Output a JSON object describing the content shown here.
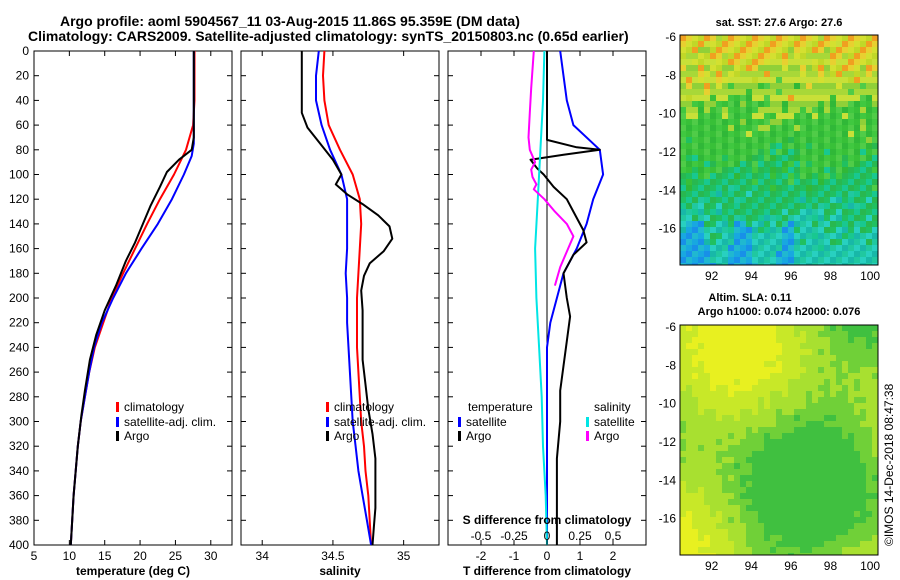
{
  "header": {
    "title_line1": "Argo profile: aoml 5904567_11 03-Aug-2015 11.86S 95.359E (DM data)",
    "title_line2": "Climatology: CARS2009. Satellite-adjusted climatology: synTS_20150803.nc (0.65d earlier)"
  },
  "credit": "©IMOS 14-Dec-2018 08:47:38",
  "colors": {
    "climatology": "#ff0000",
    "satellite": "#0000ff",
    "argo": "#000000",
    "sal_sat": "#00e5e5",
    "sal_clim": "#ff00ff"
  },
  "chart_data": [
    {
      "id": "temperature",
      "type": "line",
      "xlabel": "temperature (deg C)",
      "ylabel": "",
      "xlim": [
        5,
        33
      ],
      "ylim": [
        400,
        0
      ],
      "xticks": [
        5,
        10,
        15,
        20,
        25,
        30
      ],
      "yticks": [
        0,
        20,
        40,
        60,
        80,
        100,
        120,
        140,
        160,
        180,
        200,
        220,
        240,
        260,
        280,
        300,
        320,
        340,
        360,
        380,
        400
      ],
      "legend": {
        "placement": "bottom-right",
        "entries": [
          "climatology",
          "satellite-adj. clim.",
          "Argo"
        ]
      },
      "series": [
        {
          "name": "climatology",
          "color": "#ff0000",
          "points": [
            [
              27.7,
              0
            ],
            [
              27.7,
              40
            ],
            [
              27.5,
              60
            ],
            [
              26.5,
              80
            ],
            [
              24.8,
              100
            ],
            [
              22.8,
              120
            ],
            [
              21,
              140
            ],
            [
              19.3,
              160
            ],
            [
              17.6,
              180
            ],
            [
              16,
              200
            ],
            [
              14.8,
              220
            ],
            [
              13.6,
              240
            ],
            [
              12.8,
              260
            ],
            [
              12.2,
              280
            ],
            [
              11.6,
              300
            ],
            [
              11.2,
              320
            ],
            [
              10.9,
              340
            ],
            [
              10.6,
              360
            ],
            [
              10.4,
              380
            ],
            [
              10.2,
              400
            ]
          ]
        },
        {
          "name": "satellite-adj. clim.",
          "color": "#0000ff",
          "points": [
            [
              27.6,
              0
            ],
            [
              27.6,
              55
            ],
            [
              27.6,
              75
            ],
            [
              27.3,
              85
            ],
            [
              26.2,
              100
            ],
            [
              24.5,
              120
            ],
            [
              22.5,
              140
            ],
            [
              20.2,
              160
            ],
            [
              18,
              180
            ],
            [
              16.2,
              200
            ],
            [
              14.6,
              220
            ],
            [
              13.5,
              240
            ],
            [
              12.8,
              260
            ],
            [
              12.2,
              280
            ],
            [
              11.6,
              300
            ],
            [
              11.2,
              320
            ],
            [
              10.9,
              340
            ],
            [
              10.6,
              360
            ],
            [
              10.4,
              380
            ],
            [
              10.2,
              400
            ]
          ]
        },
        {
          "name": "Argo",
          "color": "#000000",
          "points": [
            [
              27.6,
              0
            ],
            [
              27.6,
              70
            ],
            [
              27.3,
              80
            ],
            [
              25.5,
              88
            ],
            [
              23.8,
              98
            ],
            [
              22.8,
              110
            ],
            [
              21.5,
              125
            ],
            [
              20.4,
              140
            ],
            [
              19.3,
              155
            ],
            [
              18,
              170
            ],
            [
              16.6,
              190
            ],
            [
              15,
              210
            ],
            [
              13.8,
              230
            ],
            [
              12.9,
              250
            ],
            [
              12.2,
              275
            ],
            [
              11.7,
              295
            ],
            [
              11.2,
              320
            ],
            [
              10.9,
              340
            ],
            [
              10.6,
              360
            ],
            [
              10.4,
              380
            ],
            [
              10.2,
              400
            ]
          ]
        }
      ]
    },
    {
      "id": "salinity",
      "type": "line",
      "xlabel": "salinity",
      "xlim": [
        33.85,
        35.25
      ],
      "ylim": [
        400,
        0
      ],
      "xticks": [
        34,
        34.5,
        35
      ],
      "legend": {
        "placement": "bottom-right",
        "entries": [
          "climatology",
          "satellite-adj. clim.",
          "Argo"
        ]
      },
      "series": [
        {
          "name": "climatology",
          "color": "#ff0000",
          "points": [
            [
              34.44,
              0
            ],
            [
              34.43,
              20
            ],
            [
              34.44,
              40
            ],
            [
              34.47,
              60
            ],
            [
              34.55,
              80
            ],
            [
              34.64,
              100
            ],
            [
              34.69,
              120
            ],
            [
              34.7,
              140
            ],
            [
              34.69,
              160
            ],
            [
              34.68,
              180
            ],
            [
              34.67,
              200
            ],
            [
              34.67,
              220
            ],
            [
              34.67,
              240
            ],
            [
              34.68,
              260
            ],
            [
              34.69,
              280
            ],
            [
              34.7,
              300
            ],
            [
              34.72,
              320
            ],
            [
              34.73,
              340
            ],
            [
              34.75,
              360
            ],
            [
              34.76,
              380
            ],
            [
              34.77,
              400
            ]
          ]
        },
        {
          "name": "satellite-adj. clim.",
          "color": "#0000ff",
          "points": [
            [
              34.4,
              0
            ],
            [
              34.38,
              20
            ],
            [
              34.38,
              40
            ],
            [
              34.42,
              60
            ],
            [
              34.48,
              80
            ],
            [
              34.56,
              100
            ],
            [
              34.6,
              120
            ],
            [
              34.6,
              140
            ],
            [
              34.6,
              160
            ],
            [
              34.59,
              180
            ],
            [
              34.6,
              200
            ],
            [
              34.6,
              220
            ],
            [
              34.61,
              240
            ],
            [
              34.62,
              260
            ],
            [
              34.63,
              280
            ],
            [
              34.64,
              300
            ],
            [
              34.66,
              320
            ],
            [
              34.68,
              340
            ],
            [
              34.71,
              360
            ],
            [
              34.74,
              380
            ],
            [
              34.77,
              400
            ]
          ]
        },
        {
          "name": "Argo",
          "color": "#000000",
          "points": [
            [
              34.28,
              0
            ],
            [
              34.28,
              30
            ],
            [
              34.28,
              50
            ],
            [
              34.32,
              62
            ],
            [
              34.41,
              75
            ],
            [
              34.5,
              88
            ],
            [
              34.56,
              100
            ],
            [
              34.52,
              108
            ],
            [
              34.6,
              116
            ],
            [
              34.71,
              124
            ],
            [
              34.82,
              133
            ],
            [
              34.9,
              142
            ],
            [
              34.92,
              152
            ],
            [
              34.86,
              162
            ],
            [
              34.76,
              172
            ],
            [
              34.72,
              182
            ],
            [
              34.7,
              194
            ],
            [
              34.71,
              210
            ],
            [
              34.71,
              230
            ],
            [
              34.71,
              250
            ],
            [
              34.73,
              270
            ],
            [
              34.75,
              290
            ],
            [
              34.78,
              310
            ],
            [
              34.8,
              330
            ],
            [
              34.8,
              350
            ],
            [
              34.8,
              370
            ],
            [
              34.79,
              385
            ],
            [
              34.78,
              400
            ]
          ]
        }
      ]
    },
    {
      "id": "difference",
      "type": "line",
      "xlabel": "T difference from climatology",
      "x2label": "S difference from climatology",
      "xlim": [
        -3,
        3
      ],
      "x2lim": [
        -0.75,
        0.75
      ],
      "ylim": [
        400,
        0
      ],
      "xticks": [
        -2,
        -1,
        0,
        1,
        2
      ],
      "x2ticks": [
        -0.5,
        -0.25,
        0,
        0.25,
        0.5
      ],
      "legend": {
        "placement": "bottom",
        "entries": [
          "temperature",
          "satellite",
          "Argo",
          "salinity",
          "satellite",
          "Argo"
        ]
      },
      "series": [
        {
          "name": "temperature satellite",
          "axis": "T",
          "color": "#0000ff",
          "points": [
            [
              0.4,
              0
            ],
            [
              0.5,
              20
            ],
            [
              0.6,
              40
            ],
            [
              0.8,
              60
            ],
            [
              1.6,
              80
            ],
            [
              1.7,
              100
            ],
            [
              1.4,
              120
            ],
            [
              1.2,
              140
            ],
            [
              0.9,
              160
            ],
            [
              0.5,
              180
            ],
            [
              0.3,
              200
            ],
            [
              0.1,
              220
            ],
            [
              0,
              240
            ],
            [
              0,
              260
            ],
            [
              0,
              280
            ],
            [
              0,
              300
            ],
            [
              0,
              320
            ],
            [
              0,
              340
            ],
            [
              0,
              360
            ],
            [
              0,
              380
            ],
            [
              0,
              400
            ]
          ]
        },
        {
          "name": "temperature Argo",
          "axis": "T",
          "color": "#000000",
          "points": [
            [
              0,
              0
            ],
            [
              0,
              60
            ],
            [
              0,
              72
            ],
            [
              0.9,
              78
            ],
            [
              1.6,
              80
            ],
            [
              0.5,
              84
            ],
            [
              -0.5,
              88
            ],
            [
              -0.3,
              95
            ],
            [
              -0.1,
              100
            ],
            [
              0.2,
              110
            ],
            [
              0.6,
              120
            ],
            [
              0.8,
              130
            ],
            [
              1.1,
              145
            ],
            [
              1.2,
              155
            ],
            [
              0.8,
              165
            ],
            [
              0.5,
              180
            ],
            [
              0.6,
              200
            ],
            [
              0.7,
              215
            ],
            [
              0.6,
              235
            ],
            [
              0.5,
              255
            ],
            [
              0.4,
              275
            ],
            [
              0.4,
              300
            ],
            [
              0.3,
              330
            ],
            [
              0.3,
              360
            ],
            [
              0.3,
              385
            ],
            [
              0.3,
              400
            ]
          ]
        },
        {
          "name": "salinity satellite",
          "axis": "S",
          "color": "#00e5e5",
          "points": [
            [
              -0.02,
              0
            ],
            [
              -0.03,
              40
            ],
            [
              -0.05,
              80
            ],
            [
              -0.07,
              120
            ],
            [
              -0.09,
              160
            ],
            [
              -0.08,
              200
            ],
            [
              -0.06,
              240
            ],
            [
              -0.04,
              280
            ],
            [
              -0.03,
              320
            ],
            [
              -0.01,
              360
            ],
            [
              0,
              400
            ]
          ]
        },
        {
          "name": "salinity Argo",
          "axis": "S",
          "color": "#ff00ff",
          "points": [
            [
              -0.1,
              0
            ],
            [
              -0.12,
              30
            ],
            [
              -0.13,
              50
            ],
            [
              -0.14,
              70
            ],
            [
              -0.13,
              80
            ],
            [
              -0.09,
              90
            ],
            [
              -0.12,
              96
            ],
            [
              -0.11,
              102
            ],
            [
              -0.08,
              108
            ],
            [
              -0.1,
              112
            ],
            [
              -0.02,
              120
            ],
            [
              0.06,
              130
            ],
            [
              0.15,
              140
            ],
            [
              0.2,
              150
            ],
            [
              0.16,
              160
            ],
            [
              0.1,
              175
            ],
            [
              0.06,
              190
            ]
          ]
        }
      ]
    },
    {
      "id": "sst_map",
      "type": "heatmap",
      "title": "sat. SST: 27.6 Argo: 27.6",
      "xticks": [
        92,
        94,
        96,
        98,
        100
      ],
      "yticks": [
        -6,
        -8,
        -10,
        -12,
        -14,
        -16
      ],
      "xlim": [
        90.4,
        100.4
      ],
      "ylim": [
        -17.9,
        -5.9
      ],
      "argo_position": [
        95.359,
        -11.86
      ]
    },
    {
      "id": "sla_map",
      "type": "heatmap",
      "title": "Altim. SLA: 0.11",
      "subtitle": "Argo h1000: 0.074 h2000: 0.076",
      "xticks": [
        92,
        94,
        96,
        98,
        100
      ],
      "yticks": [
        -6,
        -8,
        -10,
        -12,
        -14,
        -16
      ],
      "xlim": [
        90.4,
        100.4
      ],
      "ylim": [
        -17.9,
        -5.9
      ],
      "argo_position": [
        95.359,
        -11.86
      ]
    }
  ]
}
